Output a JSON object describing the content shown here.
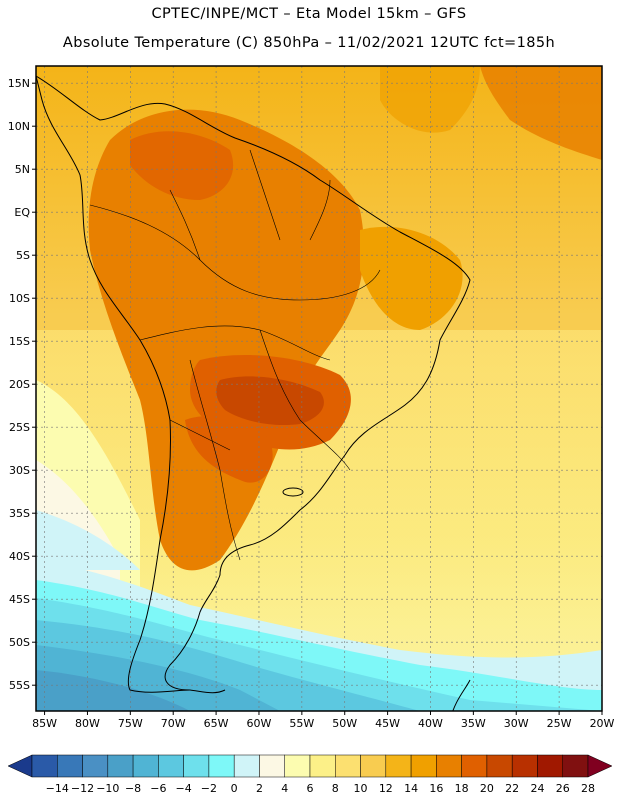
{
  "header": {
    "line1": "CPTEC/INPE/MCT –   Eta Model 15km – GFS",
    "line2": "Absolute Temperature (C) 850hPa – 11/02/2021 12UTC fct=185h"
  },
  "map": {
    "region": "South America",
    "lat_labels": [
      "15N",
      "10N",
      "5N",
      "EQ",
      "5S",
      "10S",
      "15S",
      "20S",
      "25S",
      "30S",
      "35S",
      "40S",
      "45S",
      "50S",
      "55S"
    ],
    "lat_values": [
      15,
      10,
      5,
      0,
      -5,
      -10,
      -15,
      -20,
      -25,
      -30,
      -35,
      -40,
      -45,
      -50,
      -55
    ],
    "lon_labels": [
      "85W",
      "80W",
      "75W",
      "70W",
      "65W",
      "60W",
      "55W",
      "50W",
      "45W",
      "40W",
      "35W",
      "30W",
      "25W",
      "20W"
    ],
    "lon_values": [
      -85,
      -80,
      -75,
      -70,
      -65,
      -60,
      -55,
      -50,
      -45,
      -40,
      -35,
      -30,
      -25,
      -20
    ],
    "lon_range": [
      -86,
      -20
    ],
    "lat_range": [
      -58,
      17
    ]
  },
  "colorbar": {
    "labels": [
      "-14",
      "-12",
      "-10",
      "-8",
      "-6",
      "-4",
      "-2",
      "0",
      "2",
      "4",
      "6",
      "8",
      "10",
      "12",
      "14",
      "16",
      "18",
      "20",
      "22",
      "24",
      "26",
      "28"
    ],
    "colors": [
      "#1a3a8c",
      "#2a5aa8",
      "#3878b8",
      "#4a90c4",
      "#4aa0c8",
      "#50b4d4",
      "#5cc8e0",
      "#6ee0ec",
      "#7ef8f8",
      "#d0f4f8",
      "#fcf8e4",
      "#fcfcb0",
      "#fcf088",
      "#fce070",
      "#f8cc50",
      "#f4b418",
      "#f0a000",
      "#e88000",
      "#e06000",
      "#c84800",
      "#b83000",
      "#a01800",
      "#801010",
      "#800020"
    ]
  }
}
